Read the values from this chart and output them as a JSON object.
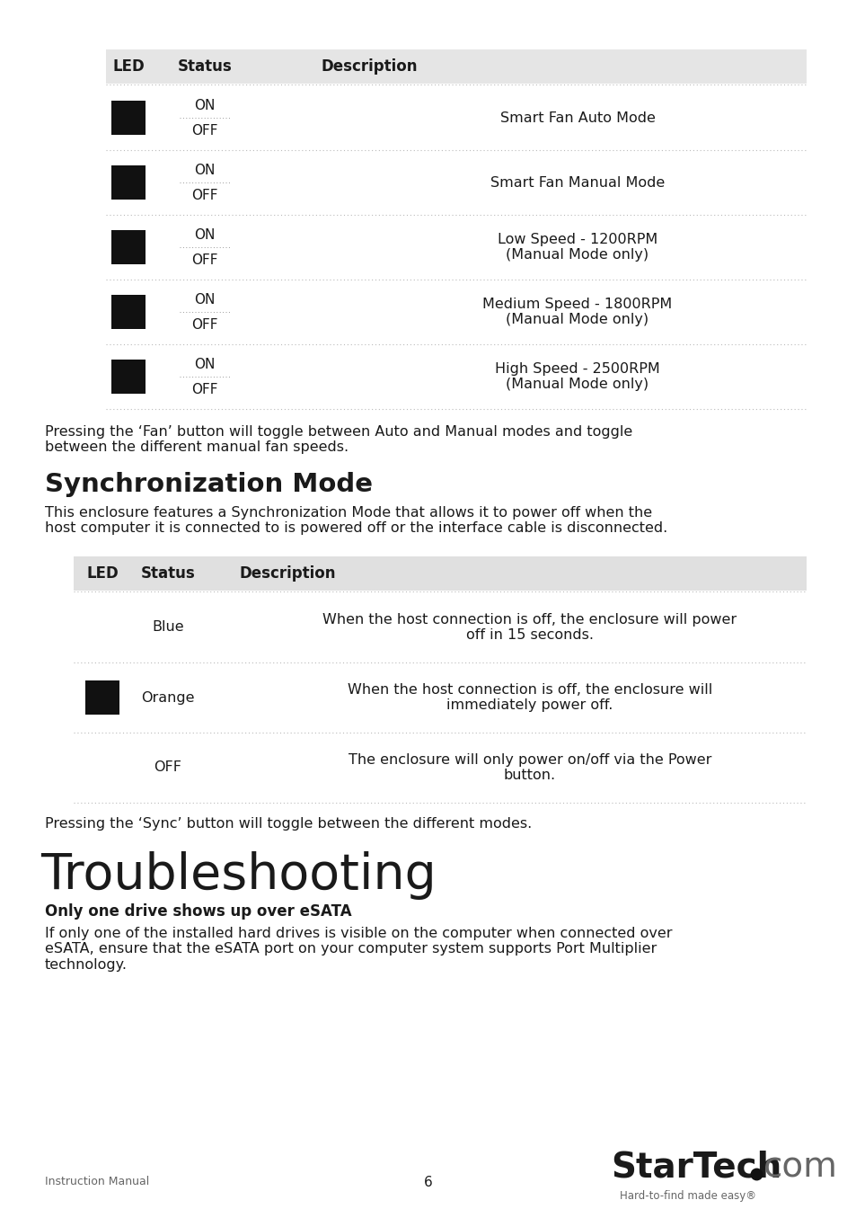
{
  "bg_color": "#ffffff",
  "table1_header_bg": "#e5e5e5",
  "table2_header_bg": "#e0e0e0",
  "table1_rows": [
    "Smart Fan Auto Mode",
    "Smart Fan Manual Mode",
    "Low Speed - 1200RPM\n(Manual Mode only)",
    "Medium Speed - 1800RPM\n(Manual Mode only)",
    "High Speed - 2500RPM\n(Manual Mode only)"
  ],
  "fan_note": "Pressing the ‘Fan’ button will toggle between Auto and Manual modes and toggle\nbetween the different manual fan speeds.",
  "sync_title": "Synchronization Mode",
  "sync_desc": "This enclosure features a Synchronization Mode that allows it to power off when the\nhost computer it is connected to is powered off or the interface cable is disconnected.",
  "table2_rows": [
    {
      "led": false,
      "status": "Blue",
      "desc": "When the host connection is off, the enclosure will power\noff in 15 seconds."
    },
    {
      "led": true,
      "status": "Orange",
      "desc": "When the host connection is off, the enclosure will\nimmediately power off."
    },
    {
      "led": false,
      "status": "OFF",
      "desc": "The enclosure will only power on/off via the Power\nbutton."
    }
  ],
  "sync_note": "Pressing the ‘Sync’ button will toggle between the different modes.",
  "trouble_title": "Troubleshooting",
  "trouble_sub": "Only one drive shows up over eSATA",
  "trouble_body": "If only one of the installed hard drives is visible on the computer when connected over\neSATA, ensure that the eSATA port on your computer system supports Port Multiplier\ntechnology.",
  "footer_left": "Instruction Manual",
  "footer_center": "6",
  "startech_tagline": "Hard-to-find made easy®",
  "text_color": "#1a1a1a",
  "dot_line_color": "#aaaaaa",
  "footer_text_color": "#666666"
}
